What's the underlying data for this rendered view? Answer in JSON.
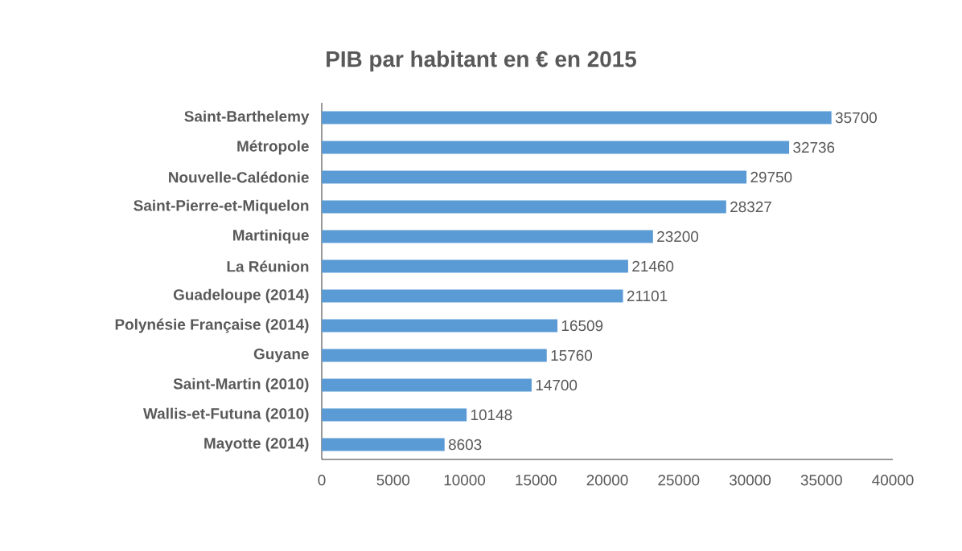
{
  "chart_data": {
    "type": "bar",
    "orientation": "horizontal",
    "title": "PIB par habitant en € en 2015",
    "categories": [
      "Saint-Barthelemy",
      "Métropole",
      "Nouvelle-Calédonie",
      "Saint-Pierre-et-Miquelon",
      "Martinique",
      "La Réunion",
      "Guadeloupe (2014)",
      "Polynésie Française (2014)",
      "Guyane",
      "Saint-Martin (2010)",
      "Wallis-et-Futuna (2010)",
      "Mayotte (2014)"
    ],
    "values": [
      35700,
      32736,
      29750,
      28327,
      23200,
      21460,
      21101,
      16509,
      15760,
      14700,
      10148,
      8603
    ],
    "color": "#5b9bd5",
    "xlim": [
      0,
      40000
    ],
    "xticks": [
      0,
      5000,
      10000,
      15000,
      20000,
      25000,
      30000,
      35000,
      40000
    ],
    "data_labels": true
  }
}
